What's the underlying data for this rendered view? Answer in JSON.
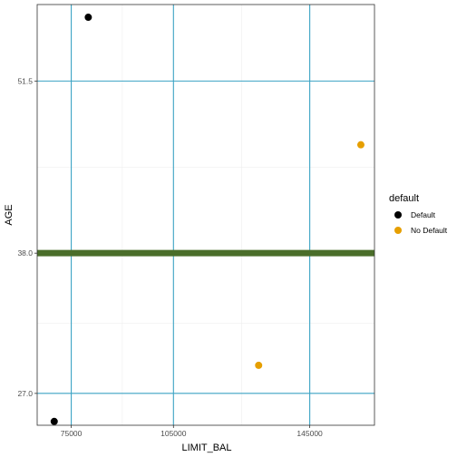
{
  "chart_data": {
    "type": "scatter",
    "xlabel": "LIMIT_BAL",
    "ylabel": "AGE",
    "xlim": [
      65000,
      164000
    ],
    "ylim": [
      24.5,
      57.5
    ],
    "x_ticks": [
      75000,
      105000,
      145000
    ],
    "x_tick_labels": [
      "75000",
      "105000",
      "145000"
    ],
    "y_ticks": [
      27.0,
      38.0,
      51.5
    ],
    "y_tick_labels": [
      "27.0",
      "38.0",
      "51.5"
    ],
    "x_minor_gridlines": [
      90000,
      125000
    ],
    "y_minor_gridlines": [
      32.5,
      44.75
    ],
    "vlines": [
      75000,
      105000,
      145000
    ],
    "hlines_thin": [
      27.0,
      51.5
    ],
    "hline_thick": 38.0,
    "legend": {
      "title": "default",
      "placement": "right",
      "entries": [
        {
          "label": "Default",
          "color": "#000000"
        },
        {
          "label": "No Default",
          "color": "#E69F00"
        }
      ]
    },
    "series": [
      {
        "name": "Default",
        "color": "#000000",
        "points": [
          [
            80000,
            56.5
          ],
          [
            70000,
            24.8
          ]
        ]
      },
      {
        "name": "No Default",
        "color": "#E69F00",
        "points": [
          [
            160000,
            46.5
          ],
          [
            130000,
            29.2
          ]
        ]
      }
    ]
  },
  "colors": {
    "reference_line": "#3BA3C4",
    "thick_line": "#4A6E2A",
    "panel_border": "#333333",
    "major_grid": "#EBEBEB"
  }
}
